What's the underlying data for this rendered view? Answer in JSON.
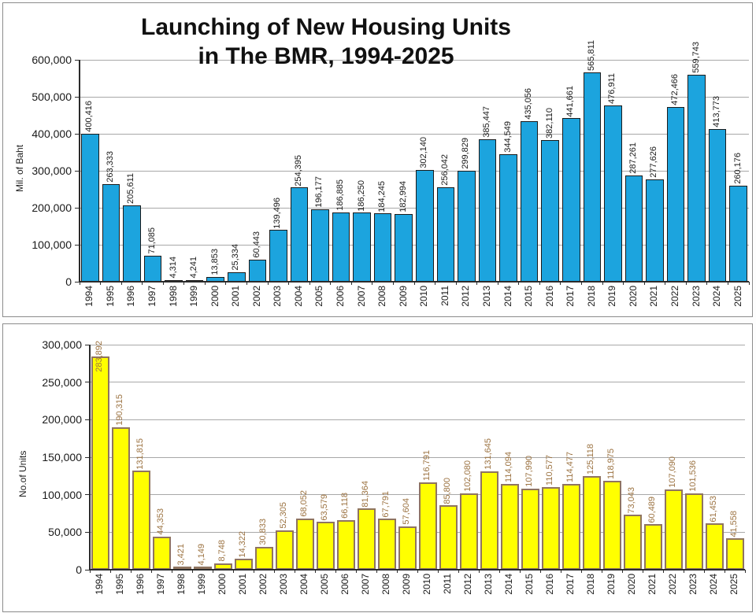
{
  "charts": {
    "top": {
      "title_line1": "Launching of New Housing Units",
      "title_line2": "in The BMR, 1994-2025",
      "ylabel": "Mil. of Baht"
    },
    "bottom": {
      "ylabel": "No.of Units"
    }
  },
  "style": {
    "top_bar_fill": "#1CA4DE",
    "top_bar_border": "#1b1b1b",
    "top_label_color": "#1a1a1a",
    "bottom_bar_fill": "#FFFF00",
    "bottom_bar_border": "#8F7460",
    "bottom_label_color": "#9C7342",
    "grid_color": "#a8a8a8",
    "axis_color": "#2b2b2b",
    "tick_text_color": "#1a1a1a"
  },
  "chart_data": [
    {
      "type": "bar",
      "title": "Launching of New Housing Units in The BMR, 1994-2025",
      "xlabel": "",
      "ylabel": "Mil. of Baht",
      "ylim": [
        0,
        600000
      ],
      "ytick_step": 100000,
      "grid": true,
      "legend": "none",
      "categories": [
        "1994",
        "1995",
        "1996",
        "1997",
        "1998",
        "1999",
        "2000",
        "2001",
        "2002",
        "2003",
        "2004",
        "2005",
        "2006",
        "2007",
        "2008",
        "2009",
        "2010",
        "2011",
        "2012",
        "2013",
        "2014",
        "2015",
        "2016",
        "2017",
        "2018",
        "2019",
        "2020",
        "2021",
        "2022",
        "2023",
        "2024",
        "2025"
      ],
      "values": [
        400416,
        263333,
        205611,
        71085,
        4314,
        4241,
        13853,
        25334,
        60443,
        139496,
        254395,
        196177,
        186885,
        186250,
        184245,
        182994,
        302140,
        256042,
        299829,
        385447,
        344549,
        435056,
        382110,
        441661,
        565811,
        476911,
        287261,
        277626,
        472466,
        559743,
        413773,
        260176
      ]
    },
    {
      "type": "bar",
      "title": "",
      "xlabel": "",
      "ylabel": "No.of Units",
      "ylim": [
        0,
        300000
      ],
      "ytick_step": 50000,
      "grid": true,
      "legend": "none",
      "categories": [
        "1994",
        "1995",
        "1996",
        "1997",
        "1998",
        "1999",
        "2000",
        "2001",
        "2002",
        "2003",
        "2004",
        "2005",
        "2006",
        "2007",
        "2008",
        "2009",
        "2010",
        "2011",
        "2012",
        "2013",
        "2014",
        "2015",
        "2016",
        "2017",
        "2018",
        "2019",
        "2020",
        "2021",
        "2022",
        "2023",
        "2024",
        "2025"
      ],
      "values": [
        283892,
        190315,
        131815,
        44353,
        3421,
        4149,
        8748,
        14322,
        30833,
        52305,
        68052,
        63579,
        66118,
        81364,
        67791,
        57604,
        116791,
        85800,
        102080,
        131645,
        114094,
        107990,
        110577,
        114477,
        125118,
        118975,
        73043,
        60489,
        107090,
        101536,
        61453,
        41558
      ]
    }
  ]
}
